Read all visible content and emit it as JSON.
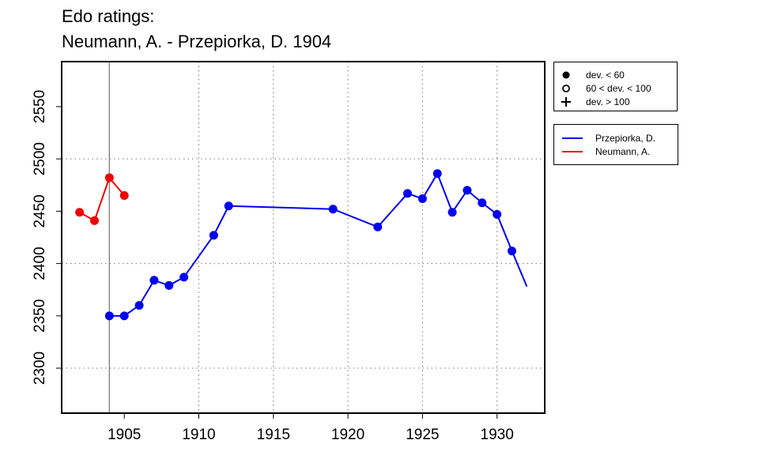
{
  "chart_data": {
    "type": "line",
    "title": [
      "Edo ratings:",
      "Neumann, A. - Przepiorka, D. 1904"
    ],
    "xlabel": "",
    "ylabel": "",
    "xlim": [
      1900.8,
      1933.2
    ],
    "ylim": [
      2257,
      2593
    ],
    "x_ticks": [
      1905,
      1910,
      1915,
      1920,
      1925,
      1930
    ],
    "y_ticks": [
      2300,
      2350,
      2400,
      2450,
      2500,
      2550
    ],
    "vertical_grid": [
      1910,
      1915,
      1920,
      1925,
      1930
    ],
    "horizontal_grid": [
      2300,
      2400,
      2500
    ],
    "reference_line_x": 1904,
    "series": [
      {
        "name": "Przepiorka, D.",
        "color": "#0000ee",
        "x": [
          1904,
          1905,
          1906,
          1907,
          1908,
          1909,
          1911,
          1912,
          1919,
          1922,
          1924,
          1925,
          1926,
          1927,
          1928,
          1929,
          1930,
          1931,
          1932
        ],
        "y": [
          2350,
          2350,
          2360,
          2384,
          2379,
          2387,
          2427,
          2455,
          2452,
          2435,
          2467,
          2462,
          2486,
          2449,
          2470,
          2458,
          2447,
          2412,
          2378
        ],
        "marker": [
          "dot",
          "dot",
          "dot",
          "dot",
          "dot",
          "dot",
          "dot",
          "dot",
          "dot",
          "dot",
          "dot",
          "dot",
          "dot",
          "dot",
          "dot",
          "dot",
          "dot",
          "dot",
          "none"
        ]
      },
      {
        "name": "Neumann, A.",
        "color": "#ee0000",
        "x": [
          1902,
          1903,
          1904,
          1905
        ],
        "y": [
          2449,
          2441,
          2482,
          2465
        ],
        "marker": [
          "dot",
          "dot",
          "dot",
          "dot"
        ]
      }
    ],
    "marker_legend": [
      {
        "symbol": "filled-circle",
        "label": "dev. < 60"
      },
      {
        "symbol": "open-circle",
        "label": "60 < dev. < 100"
      },
      {
        "symbol": "plus",
        "label": "dev. > 100"
      }
    ],
    "legend_position": "right-outside"
  }
}
